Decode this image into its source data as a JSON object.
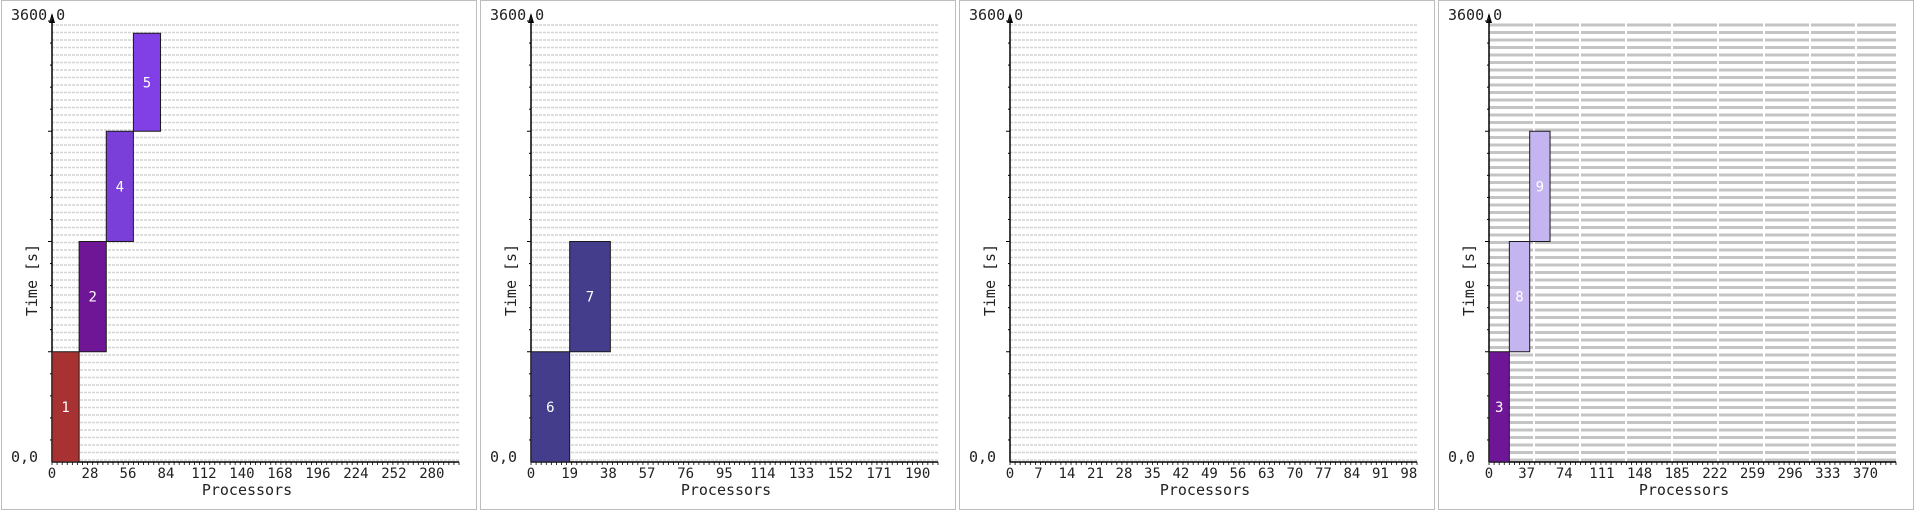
{
  "chart_data": [
    {
      "type": "gantt",
      "y_top_label": "3600,0",
      "y_bottom_label": "0,0",
      "ylabel": "Time [s]",
      "xlabel": "Processors",
      "xlim": [
        0,
        300
      ],
      "ylim": [
        0,
        3600
      ],
      "x_ticks": [
        "0",
        "28",
        "56",
        "84",
        "112",
        "140",
        "168",
        "196",
        "224",
        "252",
        "280"
      ],
      "grid": "dense dashed horizontal",
      "tasks": [
        {
          "label": "1",
          "x0": 0,
          "x1": 20,
          "y0": 0,
          "y1": 900,
          "color": "#a83232"
        },
        {
          "label": "2",
          "x0": 20,
          "x1": 40,
          "y0": 900,
          "y1": 1800,
          "color": "#6e1696"
        },
        {
          "label": "4",
          "x0": 40,
          "x1": 60,
          "y0": 1800,
          "y1": 2700,
          "color": "#7a3fd8"
        },
        {
          "label": "5",
          "x0": 60,
          "x1": 80,
          "y0": 2700,
          "y1": 3500,
          "color": "#8040e6"
        }
      ]
    },
    {
      "type": "gantt",
      "y_top_label": "3600,0",
      "y_bottom_label": "0,0",
      "ylabel": "Time [s]",
      "xlabel": "Processors",
      "xlim": [
        0,
        200
      ],
      "ylim": [
        0,
        3600
      ],
      "x_ticks": [
        "0",
        "19",
        "38",
        "57",
        "76",
        "95",
        "114",
        "133",
        "152",
        "171",
        "190"
      ],
      "grid": "dense dashed horizontal",
      "tasks": [
        {
          "label": "6",
          "x0": 0,
          "x1": 19,
          "y0": 0,
          "y1": 900,
          "color": "#433d8b"
        },
        {
          "label": "7",
          "x0": 19,
          "x1": 39,
          "y0": 900,
          "y1": 1800,
          "color": "#433d8b"
        }
      ]
    },
    {
      "type": "gantt",
      "y_top_label": "3600,0",
      "y_bottom_label": "0,0",
      "ylabel": "Time [s]",
      "xlabel": "Processors",
      "xlim": [
        0,
        100
      ],
      "ylim": [
        0,
        3600
      ],
      "x_ticks": [
        "0",
        "7",
        "14",
        "21",
        "28",
        "35",
        "42",
        "49",
        "56",
        "63",
        "70",
        "77",
        "84",
        "91",
        "98"
      ],
      "grid": "dense dashed horizontal",
      "tasks": []
    },
    {
      "type": "gantt",
      "y_top_label": "3600,0",
      "y_bottom_label": "0,0",
      "ylabel": "Time [s]",
      "xlabel": "Processors",
      "xlim": [
        0,
        400
      ],
      "ylim": [
        0,
        3600
      ],
      "x_ticks": [
        "0",
        "37",
        "74",
        "111",
        "148",
        "185",
        "222",
        "259",
        "296",
        "333",
        "370"
      ],
      "grid": "dense heavy horizontal",
      "tasks": [
        {
          "label": "3",
          "x0": 0,
          "x1": 20,
          "y0": 0,
          "y1": 900,
          "color": "#6e1696"
        },
        {
          "label": "8",
          "x0": 20,
          "x1": 40,
          "y0": 900,
          "y1": 1800,
          "color": "#c4b5f0"
        },
        {
          "label": "9",
          "x0": 40,
          "x1": 60,
          "y0": 1800,
          "y1": 2700,
          "color": "#c4b5f0"
        }
      ]
    }
  ]
}
